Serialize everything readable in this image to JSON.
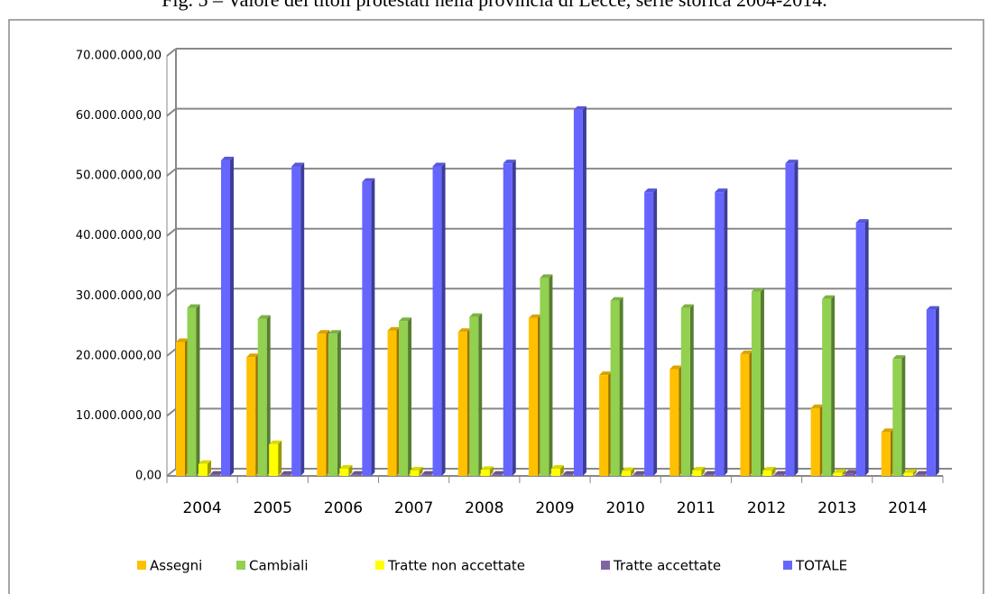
{
  "chart_data": {
    "type": "bar",
    "title": "Fig. 5 – Valore dei titoli protestati nella provincia di Lecce, serie storica 2004-2014.",
    "categories": [
      "2004",
      "2005",
      "2006",
      "2007",
      "2008",
      "2009",
      "2010",
      "2011",
      "2012",
      "2013",
      "2014"
    ],
    "series": [
      {
        "name": "Assegni",
        "color": "#ffc000",
        "values": [
          22300000,
          19800000,
          23700000,
          24200000,
          24000000,
          26300000,
          16800000,
          17800000,
          20300000,
          11300000,
          7300000
        ]
      },
      {
        "name": "Cambiali",
        "color": "#92d050",
        "values": [
          28000000,
          26200000,
          23700000,
          25800000,
          26500000,
          33000000,
          29200000,
          28000000,
          30700000,
          29500000,
          19500000
        ]
      },
      {
        "name": "Tratte non accettate",
        "color": "#ffff00",
        "values": [
          2000000,
          5300000,
          1200000,
          900000,
          1000000,
          1200000,
          800000,
          900000,
          900000,
          500000,
          500000
        ]
      },
      {
        "name": "Tratte accettate",
        "color": "#8064a2",
        "values": [
          200000,
          200000,
          200000,
          200000,
          200000,
          200000,
          200000,
          200000,
          200000,
          400000,
          200000
        ]
      },
      {
        "name": "TOTALE",
        "color": "#6666ff",
        "values": [
          52600000,
          51600000,
          49000000,
          51600000,
          52100000,
          61000000,
          47300000,
          47300000,
          52100000,
          42200000,
          27700000
        ]
      }
    ],
    "ylim": [
      0,
      70000000
    ],
    "yticks": [
      {
        "value": 0,
        "label": "0,00"
      },
      {
        "value": 10000000,
        "label": "10.000.000,00"
      },
      {
        "value": 20000000,
        "label": "20.000.000,00"
      },
      {
        "value": 30000000,
        "label": "30.000.000,00"
      },
      {
        "value": 40000000,
        "label": "40.000.000,00"
      },
      {
        "value": 50000000,
        "label": "50.000.000,00"
      },
      {
        "value": 60000000,
        "label": "60.000.000,00"
      },
      {
        "value": 70000000,
        "label": "70.000.000,00"
      }
    ],
    "grid": true,
    "legend": "bottom"
  }
}
